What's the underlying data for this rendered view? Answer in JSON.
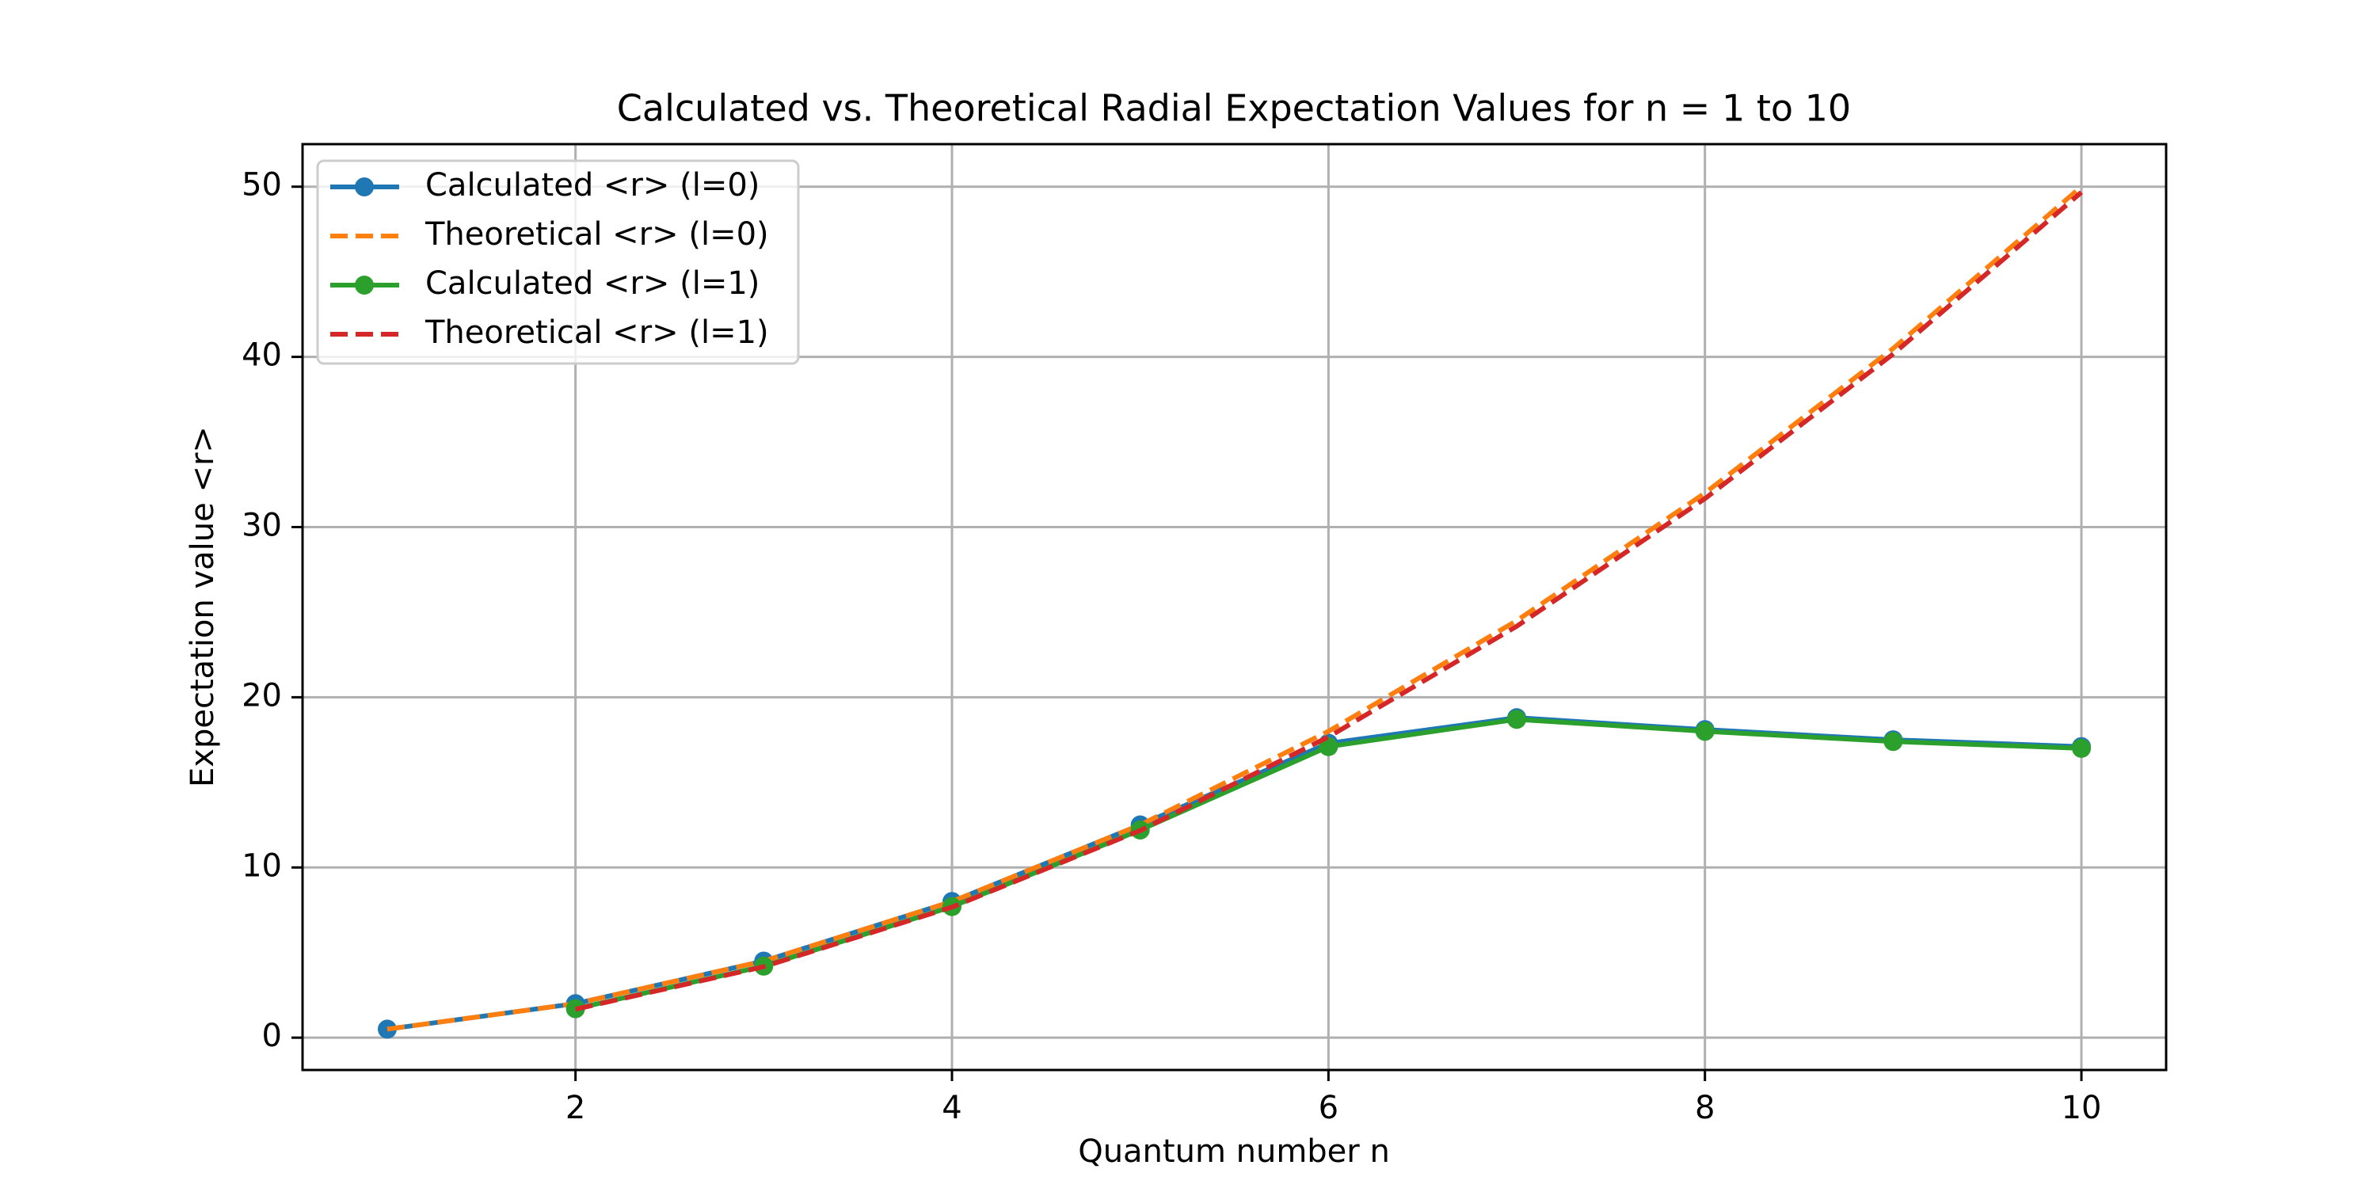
{
  "chart_data": {
    "type": "line",
    "title": "Calculated vs. Theoretical Radial Expectation Values for n = 1 to 10",
    "x_label": "Quantum number n",
    "y_label": "Expectation value <r>",
    "x": [
      1,
      2,
      3,
      4,
      5,
      6,
      7,
      8,
      9,
      10
    ],
    "series": [
      {
        "name": "Calculated <r> (l=0)",
        "color": "#1f77b4",
        "style": "solid",
        "marker": true,
        "values": [
          0.5,
          2,
          4.5,
          8,
          12.5,
          17.3,
          18.8,
          18.1,
          17.5,
          17.1
        ]
      },
      {
        "name": "Theoretical <r> (l=0)",
        "color": "#ff7f0e",
        "style": "dashed",
        "marker": false,
        "values": [
          0.5,
          2,
          4.5,
          8,
          12.5,
          18,
          24.5,
          32,
          40.5,
          50
        ]
      },
      {
        "name": "Calculated <r> (l=1)",
        "color": "#2ca02c",
        "style": "solid",
        "marker": true,
        "values": [
          null,
          1.7,
          4.2,
          7.7,
          12.2,
          17.1,
          18.7,
          18.0,
          17.4,
          17.0
        ]
      },
      {
        "name": "Theoretical <r> (l=1)",
        "color": "#d62728",
        "style": "dashed",
        "marker": false,
        "values": [
          null,
          1.67,
          4.17,
          7.67,
          12.17,
          17.67,
          24.17,
          31.67,
          40.17,
          49.67
        ]
      }
    ],
    "xlim": [
      0.55,
      10.45
    ],
    "xticks": [
      2,
      4,
      6,
      8,
      10
    ],
    "ylim": [
      -1.9,
      52.5
    ],
    "yticks": [
      0,
      10,
      20,
      30,
      40,
      50
    ],
    "grid": true,
    "legend": "upper left"
  }
}
